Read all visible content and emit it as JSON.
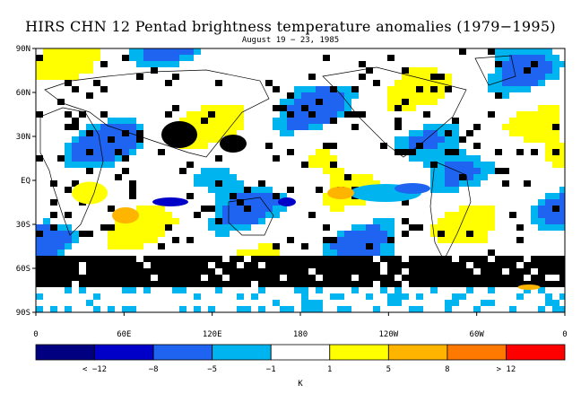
{
  "title": "HIRS CHN 12 Pentad brightness temperature anomalies (1979−1995)",
  "subtitle": "August 19 − 23, 1985",
  "lat_labels": [
    "90N",
    "60N",
    "30N",
    "EQ",
    "30S",
    "60S",
    "90S"
  ],
  "lon_labels": [
    "0",
    "60E",
    "120E",
    "180",
    "120W",
    "60W",
    "0"
  ],
  "colorbar": {
    "colors": [
      "#000080",
      "#0000c8",
      "#1e64f0",
      "#00b4f0",
      "#ffffff",
      "#ffff00",
      "#ffb400",
      "#ff7800",
      "#ff0000"
    ],
    "labels": [
      "< −12",
      "−8",
      "−5",
      "−1",
      "1",
      "5",
      "8",
      "> 12"
    ],
    "unit": "K"
  },
  "map_colors": {
    "missing": "#000000",
    "neutral": "#ffffff",
    "coast": "#000000"
  }
}
